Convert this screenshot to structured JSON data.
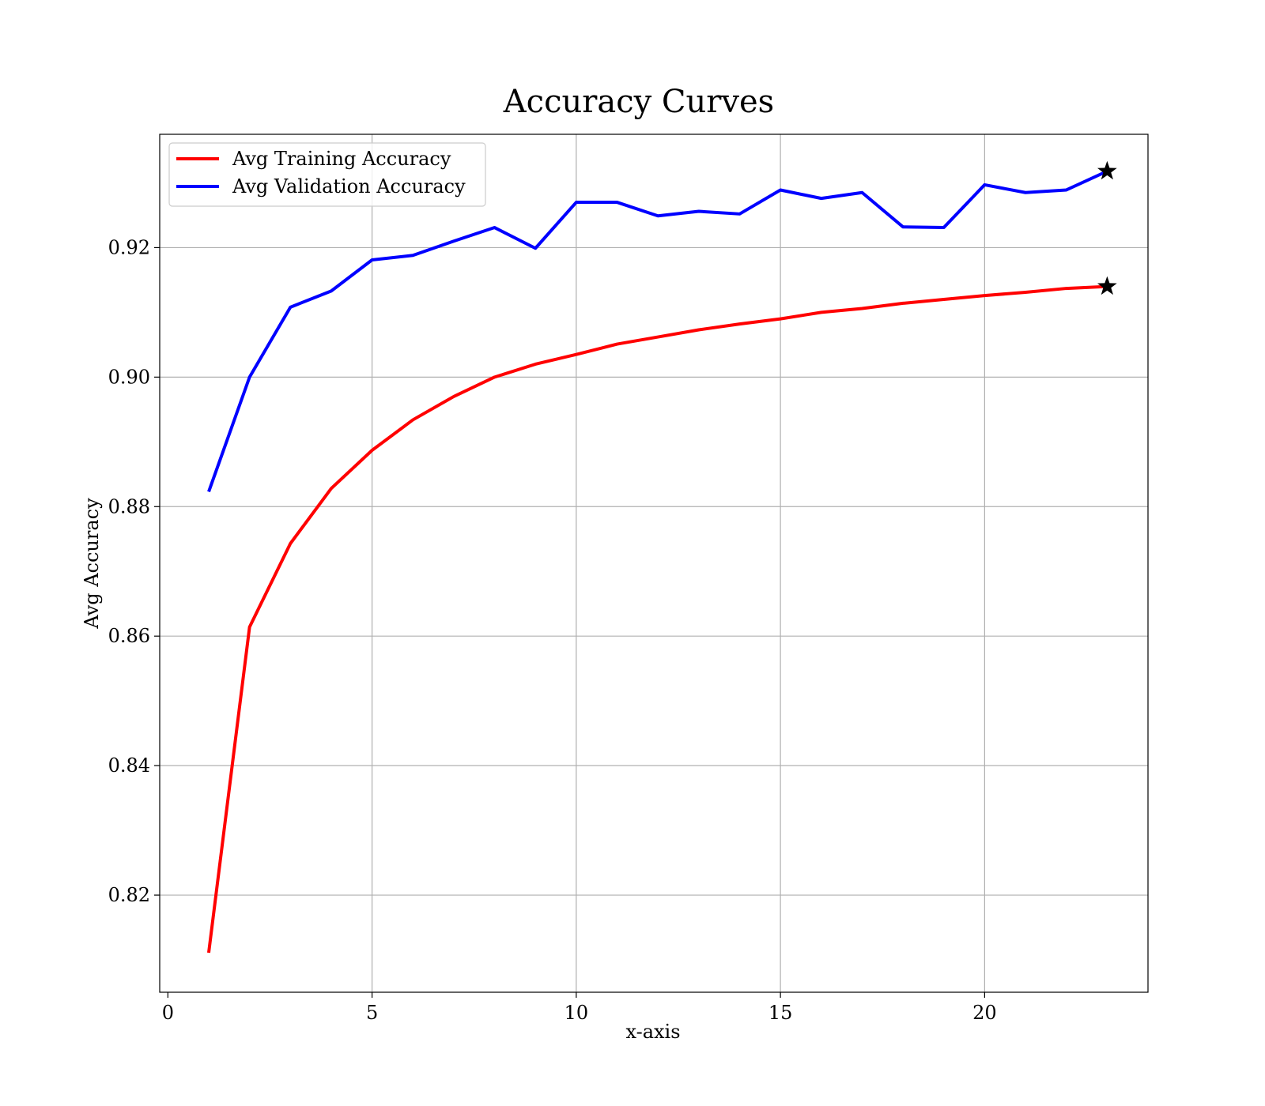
{
  "chart_data": {
    "type": "line",
    "title": "Accuracy Curves",
    "xlabel": "x-axis",
    "ylabel": "Avg Accuracy",
    "xlim": [
      -0.2,
      24.0
    ],
    "ylim": [
      0.805,
      0.9375
    ],
    "x_ticks": [
      0,
      5,
      10,
      15,
      20
    ],
    "x_tick_labels": [
      "0",
      "5",
      "10",
      "15",
      "20"
    ],
    "y_ticks": [
      0.82,
      0.84,
      0.86,
      0.88,
      0.9,
      0.92
    ],
    "y_tick_labels": [
      "0.82",
      "0.84",
      "0.86",
      "0.88",
      "0.90",
      "0.92"
    ],
    "grid": true,
    "legend_position": "top-left",
    "x": [
      1,
      2,
      3,
      4,
      5,
      6,
      7,
      8,
      9,
      10,
      11,
      12,
      13,
      14,
      15,
      16,
      17,
      18,
      19,
      20,
      21,
      22,
      23
    ],
    "series": [
      {
        "name": "Avg Training Accuracy",
        "color": "#ff0000",
        "values": [
          0.8111,
          0.8614,
          0.8743,
          0.8828,
          0.8887,
          0.8934,
          0.897,
          0.9,
          0.902,
          0.9035,
          0.9051,
          0.9062,
          0.9073,
          0.9082,
          0.909,
          0.91,
          0.9106,
          0.9114,
          0.912,
          0.9126,
          0.9131,
          0.9137,
          0.914
        ]
      },
      {
        "name": "Avg Validation Accuracy",
        "color": "#0000ff",
        "values": [
          0.8823,
          0.9,
          0.9108,
          0.9133,
          0.9181,
          0.9188,
          0.921,
          0.9231,
          0.9199,
          0.927,
          0.927,
          0.9249,
          0.9256,
          0.9252,
          0.9289,
          0.9276,
          0.9285,
          0.9232,
          0.9231,
          0.9297,
          0.9285,
          0.9289,
          0.9318
        ]
      }
    ],
    "markers": [
      {
        "series": "Avg Training Accuracy",
        "x": 23,
        "y": 0.914,
        "symbol": "star",
        "color": "#000000"
      },
      {
        "series": "Avg Validation Accuracy",
        "x": 23,
        "y": 0.9318,
        "symbol": "star",
        "color": "#000000"
      }
    ]
  }
}
